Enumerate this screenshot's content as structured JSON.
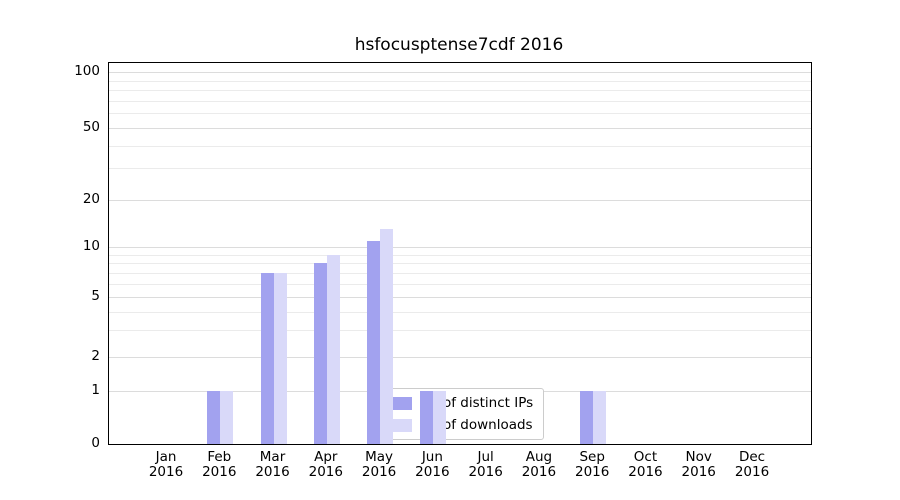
{
  "figure": {
    "background": "#ffffff"
  },
  "title": "hsfocusptense7cdf 2016",
  "chart_data": {
    "type": "bar",
    "title": "hsfocusptense7cdf 2016",
    "categories": [
      "Jan 2016",
      "Feb 2016",
      "Mar 2016",
      "Apr 2016",
      "May 2016",
      "Jun 2016",
      "Jul 2016",
      "Aug 2016",
      "Sep 2016",
      "Oct 2016",
      "Nov 2016",
      "Dec 2016"
    ],
    "months": [
      "Jan",
      "Feb",
      "Mar",
      "Apr",
      "May",
      "Jun",
      "Jul",
      "Aug",
      "Sep",
      "Oct",
      "Nov",
      "Dec"
    ],
    "year": "2016",
    "series": [
      {
        "name": "Nb of distinct IPs",
        "color": "#a2a2ef",
        "values": [
          0,
          1,
          7,
          8,
          11,
          1,
          0,
          0,
          1,
          0,
          0,
          0
        ]
      },
      {
        "name": "Nb of downloads",
        "color": "#d9d9f9",
        "values": [
          0,
          1,
          7,
          9,
          13,
          1,
          0,
          0,
          1,
          0,
          0,
          0
        ]
      }
    ],
    "xlabel": "",
    "ylabel": "",
    "y_axis": {
      "scale": "log-like",
      "ticks": [
        0,
        1,
        2,
        5,
        10,
        20,
        50,
        100
      ],
      "minor_gridlines": [
        3,
        4,
        6,
        7,
        8,
        9,
        30,
        40,
        60,
        70,
        80,
        90
      ]
    },
    "grid": true,
    "legend_position": "bottom-center",
    "colors": {
      "grid_major": "#dcdcdc",
      "grid_minor": "#ebebeb",
      "spine": "#000000",
      "text": "#000000"
    }
  }
}
